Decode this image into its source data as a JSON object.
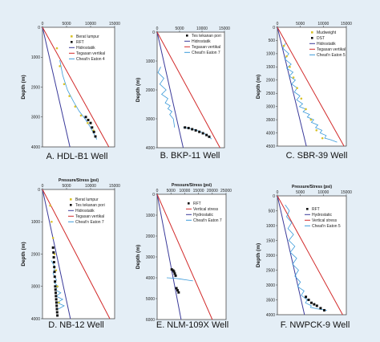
{
  "colors": {
    "background": "#e4eef6",
    "hydrostatic": "#3a3a9a",
    "vertical": "#d22a2a",
    "eaton": "#3a9ad9",
    "rft": "#111111",
    "mudweight": "#d9c22a"
  },
  "chart_data": [
    {
      "type": "line",
      "caption": "A. HDL-B1  Well",
      "ylabel": "Depth (m)",
      "top_label": "",
      "xticks": [
        0,
        5000,
        10000,
        15000
      ],
      "xlim": [
        0,
        15000
      ],
      "yticks": [
        0,
        1000,
        2000,
        3000,
        4000
      ],
      "ylim": [
        4000,
        0
      ],
      "legend": [
        "Berat lumpur",
        "RFT",
        "Hidrostatik",
        "Tegasan vertikal",
        "Cheat'n Eaton 4"
      ],
      "series": [
        {
          "role": "hydrostatic",
          "x": [
            0,
            5700
          ],
          "y": [
            0,
            4000
          ]
        },
        {
          "role": "vertical",
          "x": [
            0,
            13800
          ],
          "y": [
            0,
            4000
          ]
        },
        {
          "role": "eaton",
          "x": [
            3600,
            4200,
            5200,
            6500,
            7600,
            8800,
            9800,
            10500,
            11300
          ],
          "y": [
            1100,
            1600,
            2100,
            2500,
            2800,
            3050,
            3300,
            3500,
            3750
          ]
        },
        {
          "role": "mudweight",
          "x": [
            3000,
            3600,
            4500,
            5600,
            6800,
            8000,
            9400,
            10600
          ],
          "y": [
            700,
            1300,
            1900,
            2300,
            2650,
            2950,
            3200,
            3450
          ]
        },
        {
          "role": "rft",
          "marker": "dot",
          "x": [
            9000,
            9500,
            10000,
            10300,
            10700,
            11000
          ],
          "y": [
            3000,
            3100,
            3200,
            3350,
            3500,
            3650
          ]
        }
      ]
    },
    {
      "type": "line",
      "caption": "B. BKP-11  Well",
      "ylabel": "Depth (m)",
      "top_label": "",
      "xticks": [
        0,
        5000,
        10000,
        15000
      ],
      "xlim": [
        0,
        15000
      ],
      "yticks": [
        0,
        1000,
        2000,
        3000,
        4000
      ],
      "ylim": [
        4000,
        0
      ],
      "legend": [
        "Tes tekanan pori",
        "Hidrostatik",
        "Tegasan vertikal",
        "Cheat'n Eaton 7"
      ],
      "series": [
        {
          "role": "hydrostatic",
          "x": [
            0,
            5800
          ],
          "y": [
            0,
            4000
          ]
        },
        {
          "role": "vertical",
          "x": [
            0,
            14000
          ],
          "y": [
            0,
            4000
          ]
        },
        {
          "role": "eaton",
          "x": [
            800,
            200,
            1500,
            600,
            2000,
            1000,
            2400,
            1800,
            2900,
            2400,
            3300,
            2800,
            3600,
            3900
          ],
          "y": [
            1200,
            1400,
            1600,
            1800,
            2000,
            2150,
            2300,
            2450,
            2550,
            2650,
            2750,
            2850,
            3000,
            3300
          ]
        },
        {
          "role": "eaton",
          "x": [
            5800,
            6800,
            8000,
            9200,
            10400,
            11500,
            12100
          ],
          "y": [
            3300,
            3320,
            3360,
            3420,
            3500,
            3600,
            3700
          ]
        },
        {
          "role": "rft",
          "marker": "dot",
          "x": [
            6200,
            7000,
            7800,
            8600,
            9400,
            10200,
            11000,
            11600
          ],
          "y": [
            3300,
            3320,
            3360,
            3400,
            3450,
            3500,
            3560,
            3620
          ]
        }
      ]
    },
    {
      "type": "line",
      "caption": "C. SBR-39  Well",
      "ylabel": "Depth (m)",
      "top_label": "",
      "xticks": [
        0,
        5000,
        10000,
        15000
      ],
      "xlim": [
        0,
        15000
      ],
      "yticks": [
        0,
        500,
        1000,
        1500,
        2000,
        2500,
        3000,
        3500,
        4000,
        4500
      ],
      "ylim": [
        4500,
        0
      ],
      "legend": [
        "Mudweight",
        "DST",
        "Hidrostatik",
        "Tegasan vertikal",
        "Cheat'n Eaton 5"
      ],
      "series": [
        {
          "role": "hydrostatic",
          "x": [
            0,
            6300
          ],
          "y": [
            0,
            4500
          ]
        },
        {
          "role": "vertical",
          "x": [
            0,
            14500
          ],
          "y": [
            0,
            4500
          ]
        },
        {
          "role": "eaton",
          "x": [
            1800,
            1200,
            2500,
            1600,
            3000,
            2000,
            3400,
            2600,
            3900,
            3100,
            4300,
            3700,
            4900,
            4200,
            5500,
            4800,
            6200,
            5600,
            7000,
            6500,
            7900,
            7400,
            8800,
            8300,
            9700,
            9300,
            10600,
            10300,
            11400,
            12200,
            13000
          ],
          "y": [
            600,
            800,
            1000,
            1200,
            1400,
            1550,
            1700,
            1850,
            2000,
            2150,
            2300,
            2450,
            2600,
            2750,
            2900,
            3000,
            3100,
            3200,
            3300,
            3400,
            3500,
            3600,
            3700,
            3800,
            3900,
            4000,
            4100,
            4200,
            4250,
            4300,
            4350
          ]
        },
        {
          "role": "mudweight",
          "x": [
            1400,
            2000,
            2700,
            3500,
            4300,
            5200,
            6200,
            7300,
            8500,
            9800
          ],
          "y": [
            700,
            1100,
            1500,
            1900,
            2300,
            2700,
            3100,
            3500,
            3900,
            4200
          ]
        }
      ]
    },
    {
      "type": "line",
      "caption": "D. NB-12  Well",
      "ylabel": "Depth (m)",
      "top_label": "Pressure/Stress  (psi)",
      "xticks": [
        0,
        5000,
        10000,
        15000
      ],
      "xlim": [
        0,
        15000
      ],
      "yticks": [
        0,
        1000,
        2000,
        3000,
        4000
      ],
      "ylim": [
        4000,
        0
      ],
      "legend": [
        "Berat lumpur",
        "Tes tekanan pori",
        "Hidrostatik",
        "Tegasan vertikal",
        "Cheat'n Eaton 7"
      ],
      "series": [
        {
          "role": "hydrostatic",
          "x": [
            0,
            5800
          ],
          "y": [
            0,
            4000
          ]
        },
        {
          "role": "vertical",
          "x": [
            0,
            14000
          ],
          "y": [
            0,
            4000
          ]
        },
        {
          "role": "eaton",
          "x": [
            1800,
            2600,
            2200,
            2900,
            2500,
            3300,
            2600,
            3800,
            2800,
            4200,
            3000,
            4500,
            3300
          ],
          "y": [
            2200,
            2400,
            2600,
            2800,
            2900,
            3000,
            3100,
            3200,
            3300,
            3400,
            3500,
            3600,
            3700
          ]
        },
        {
          "role": "mudweight",
          "x": [
            1600,
            1900,
            2200,
            2500,
            2800,
            3100,
            3400
          ],
          "y": [
            500,
            1000,
            1500,
            2000,
            2500,
            3000,
            3500
          ]
        },
        {
          "role": "rft",
          "marker": "dot",
          "x": [
            2200,
            2300,
            2350,
            2400,
            2450,
            2500,
            2550,
            2600,
            2650,
            2700,
            2750,
            2800,
            2850,
            2900,
            2950,
            3000,
            3050,
            3100
          ],
          "y": [
            1800,
            1950,
            2100,
            2250,
            2400,
            2550,
            2700,
            2850,
            3000,
            3100,
            3200,
            3300,
            3400,
            3500,
            3600,
            3700,
            3800,
            3900
          ]
        }
      ]
    },
    {
      "type": "line",
      "caption": "E. NLM-109X  Well",
      "ylabel": "Depth (m)",
      "top_label": "Pressure/Stress  (psi)",
      "xticks": [
        0,
        5000,
        10000,
        15000,
        20000,
        25000
      ],
      "xlim": [
        0,
        25000
      ],
      "yticks": [
        0,
        1000,
        2000,
        3000,
        4000,
        5000,
        6000
      ],
      "ylim": [
        6000,
        0
      ],
      "legend": [
        "RFT",
        "Vertical stress",
        "Hydrostatic",
        "Cheat'n Eaton 7"
      ],
      "series": [
        {
          "role": "hydrostatic",
          "x": [
            0,
            8700
          ],
          "y": [
            0,
            6000
          ]
        },
        {
          "role": "vertical",
          "x": [
            0,
            20000
          ],
          "y": [
            0,
            6000
          ]
        },
        {
          "role": "eaton",
          "x": [
            3500,
            6000,
            8000,
            10500,
            13000
          ],
          "y": [
            4000,
            4020,
            4050,
            4100,
            4150
          ]
        },
        {
          "role": "rft",
          "marker": "dot",
          "x": [
            5300,
            5800,
            6100,
            6400,
            6700,
            7000,
            7400,
            7800
          ],
          "y": [
            3600,
            3650,
            3700,
            3800,
            3900,
            4500,
            4600,
            4700
          ]
        }
      ]
    },
    {
      "type": "line",
      "caption": "F. NWPCK-9  Well",
      "ylabel": "Depth (m)",
      "top_label": "Pressure/Stress  (psi)",
      "xticks": [
        0,
        5000,
        10000,
        15000
      ],
      "xlim": [
        0,
        15000
      ],
      "yticks": [
        0,
        500,
        1000,
        1500,
        2000,
        2500,
        3000,
        3500,
        4000
      ],
      "ylim": [
        4000,
        0
      ],
      "legend": [
        "RFT",
        "Hydrostatic",
        "Vertical stress",
        "Cheat'n Eaton 5"
      ],
      "series": [
        {
          "role": "hydrostatic",
          "x": [
            0,
            5900
          ],
          "y": [
            0,
            4000
          ]
        },
        {
          "role": "vertical",
          "x": [
            0,
            14200
          ],
          "y": [
            0,
            4000
          ]
        },
        {
          "role": "eaton",
          "x": [
            1700,
            2600,
            2000,
            3100,
            2300,
            3500,
            2500,
            3800,
            2800,
            4200,
            3300,
            4600,
            3800,
            5000,
            4400,
            5800,
            5200,
            6500,
            6100,
            7400,
            7200,
            8600,
            9800,
            10800
          ],
          "y": [
            300,
            500,
            700,
            900,
            1100,
            1300,
            1500,
            1700,
            1900,
            2100,
            2300,
            2500,
            2700,
            2900,
            3050,
            3200,
            3350,
            3500,
            3600,
            3700,
            3750,
            3800,
            3830,
            3850
          ]
        },
        {
          "role": "rft",
          "marker": "dot",
          "x": [
            6200,
            6800,
            7400,
            8000,
            8600,
            9400,
            10200
          ],
          "y": [
            3400,
            3500,
            3600,
            3650,
            3700,
            3780,
            3850
          ]
        }
      ]
    }
  ]
}
